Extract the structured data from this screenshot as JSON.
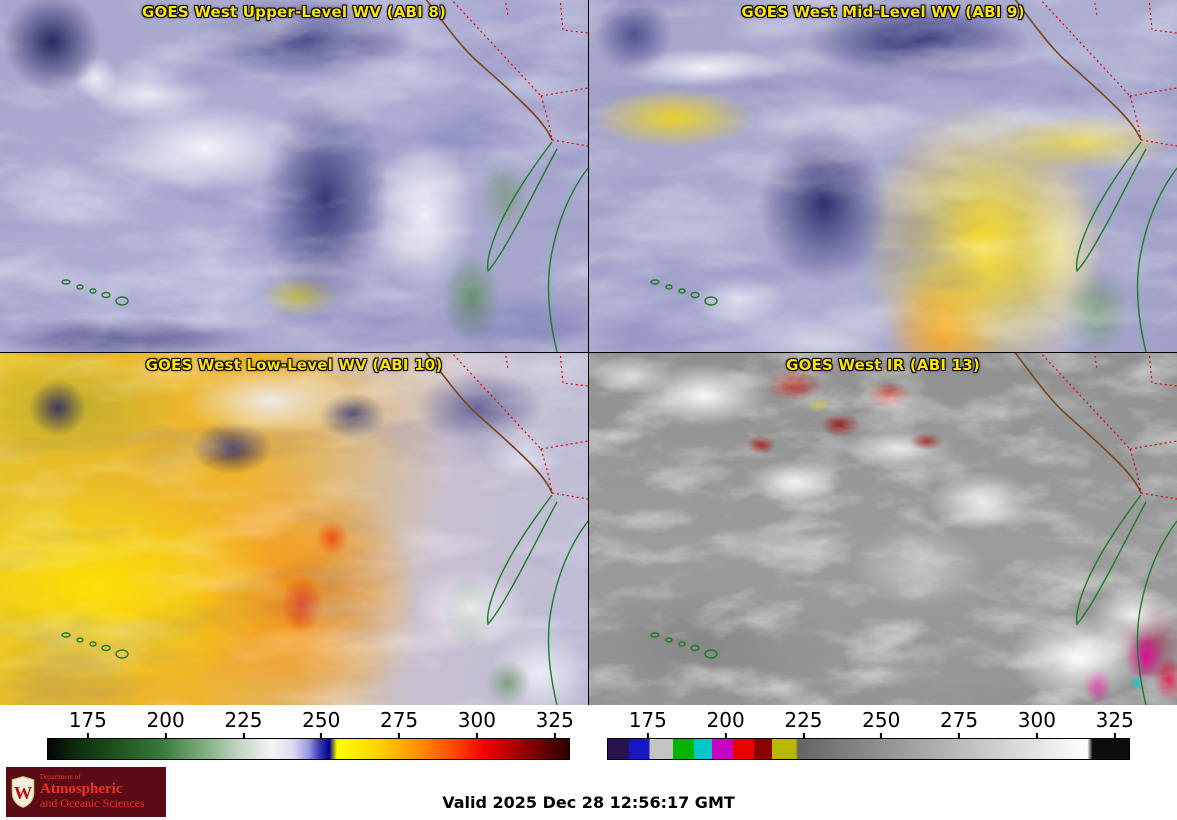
{
  "panels": [
    {
      "key": "abi8",
      "title": "GOES West Upper-Level WV (ABI 8)"
    },
    {
      "key": "abi9",
      "title": "GOES West Mid-Level WV (ABI 9)"
    },
    {
      "key": "abi10",
      "title": "GOES West Low-Level WV (ABI 10)"
    },
    {
      "key": "abi13",
      "title": "GOES West IR (ABI 13)"
    }
  ],
  "colorbars": [
    {
      "key": "wv",
      "ticks": [
        "175",
        "200",
        "225",
        "250",
        "275",
        "300",
        "325"
      ],
      "tick_start_pct": 7.8,
      "tick_step_pct": 14.88,
      "gradient": [
        [
          "#050505",
          0
        ],
        [
          "#0d2a0d",
          5
        ],
        [
          "#1e521e",
          13
        ],
        [
          "#3a7a3a",
          22
        ],
        [
          "#7fae7f",
          30
        ],
        [
          "#c6d6c6",
          37
        ],
        [
          "#f4f4f4",
          43
        ],
        [
          "#dcdcf0",
          47
        ],
        [
          "#9a9ade",
          50
        ],
        [
          "#3c3cb8",
          52
        ],
        [
          "#00008e",
          54
        ],
        [
          "#ffff00",
          55.5
        ],
        [
          "#ffd400",
          63
        ],
        [
          "#ff9000",
          71
        ],
        [
          "#ff4800",
          78
        ],
        [
          "#ee0000",
          84
        ],
        [
          "#a80000",
          90
        ],
        [
          "#5c0000",
          96
        ],
        [
          "#2e0000",
          100
        ]
      ]
    },
    {
      "key": "ir",
      "ticks": [
        "175",
        "200",
        "225",
        "250",
        "275",
        "300",
        "325"
      ],
      "tick_start_pct": 7.8,
      "tick_step_pct": 14.88,
      "gradient": [
        [
          "#2a1150",
          0
        ],
        [
          "#2a1150",
          4
        ],
        [
          "#1616c8",
          4
        ],
        [
          "#1616c8",
          8
        ],
        [
          "#c4c4c4",
          8
        ],
        [
          "#c4c4c4",
          12.5
        ],
        [
          "#00b400",
          12.5
        ],
        [
          "#00b400",
          16.5
        ],
        [
          "#00c8c8",
          16.5
        ],
        [
          "#00c8c8",
          20
        ],
        [
          "#c800c8",
          20
        ],
        [
          "#c800c8",
          24
        ],
        [
          "#e80000",
          24
        ],
        [
          "#e80000",
          28
        ],
        [
          "#8c0000",
          28
        ],
        [
          "#8c0000",
          31.5
        ],
        [
          "#b8b800",
          31.5
        ],
        [
          "#b8b800",
          36
        ],
        [
          "#646464",
          36.5
        ],
        [
          "#ffffff",
          92
        ],
        [
          "#0c0c0c",
          93
        ],
        [
          "#0c0c0c",
          100
        ]
      ]
    }
  ],
  "footer": {
    "valid_label": "Valid 2025 Dec 28 12:56:17 GMT",
    "logo": {
      "dept": "Department of",
      "line1": "Atmospheric",
      "line2": "and Oceanic Sciences",
      "monogram": "W"
    }
  },
  "colors": {
    "title_text": "#ffe400",
    "valid_text": "#000000",
    "logo_bg": "#5a0b16",
    "logo_text": "#f03222",
    "state_border": "#e00000",
    "us_coast": "#7a4418",
    "mexico_coast": "#1d7a28"
  }
}
